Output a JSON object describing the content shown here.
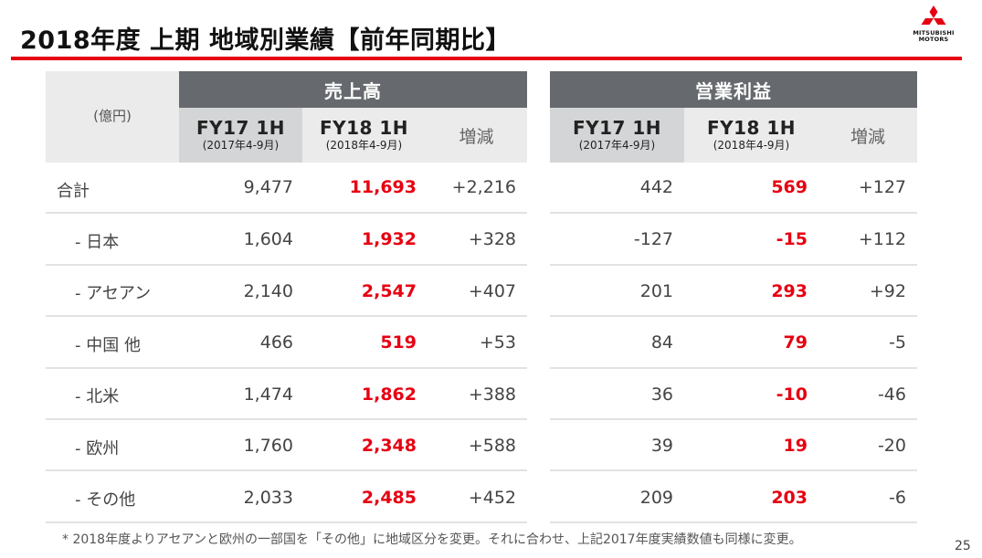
{
  "title": "2018年度 上期 地域別業績【前年同期比】",
  "logo": {
    "line1": "MITSUBISHI",
    "line2": "MOTORS"
  },
  "unit": "(億円)",
  "groups": {
    "sales": "売上高",
    "profit": "営業利益"
  },
  "columns": {
    "fy17": "FY17 1H",
    "fy17_sub": "(2017年4-9月)",
    "fy18": "FY18 1H",
    "fy18_sub": "(2018年4-9月)",
    "diff": "増減"
  },
  "rows": [
    {
      "label": "合計",
      "sales": [
        "9,477",
        "11,693",
        "+2,216"
      ],
      "profit": [
        "442",
        "569",
        "+127"
      ]
    },
    {
      "label": "- 日本",
      "sales": [
        "1,604",
        "1,932",
        "+328"
      ],
      "profit": [
        "-127",
        "-15",
        "+112"
      ]
    },
    {
      "label": "- アセアン",
      "sales": [
        "2,140",
        "2,547",
        "+407"
      ],
      "profit": [
        "201",
        "293",
        "+92"
      ]
    },
    {
      "label": "- 中国 他",
      "sales": [
        "466",
        "519",
        "+53"
      ],
      "profit": [
        "84",
        "79",
        "-5"
      ]
    },
    {
      "label": "- 北米",
      "sales": [
        "1,474",
        "1,862",
        "+388"
      ],
      "profit": [
        "36",
        "-10",
        "-46"
      ]
    },
    {
      "label": "- 欧州",
      "sales": [
        "1,760",
        "2,348",
        "+588"
      ],
      "profit": [
        "39",
        "19",
        "-20"
      ]
    },
    {
      "label": "- その他",
      "sales": [
        "2,033",
        "2,485",
        "+452"
      ],
      "profit": [
        "209",
        "203",
        "-6"
      ]
    }
  ],
  "footnote": "* 2018年度よりアセアンと欧州の一部国を「その他」に地域区分を変更。それに合わせ、上記2017年度実績数値も同様に変更。",
  "page_number": "25",
  "colors": {
    "accent_red": "#e60012",
    "header_dark": "#666a6e"
  }
}
